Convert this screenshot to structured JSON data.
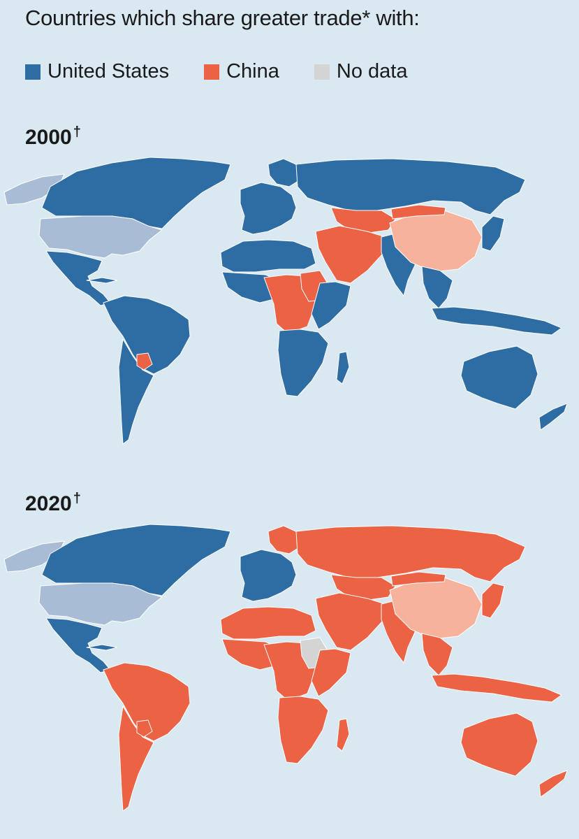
{
  "title": "Countries which share greater trade* with:",
  "legend": [
    {
      "label": "United States",
      "color": "#2e6ca4"
    },
    {
      "label": "China",
      "color": "#ec6245"
    },
    {
      "label": "No data",
      "color": "#d4d4d4"
    }
  ],
  "colors": {
    "background": "#d9e8f1",
    "us_self": "#a9bcd6",
    "china_self": "#f7b29c",
    "greenland": "#a9bcd6",
    "border": "#ffffff"
  },
  "maps": [
    {
      "year_label": "2000",
      "dagger": "†",
      "regions": {
        "canada": "us",
        "greenland": "na",
        "usa": "us_self",
        "mexico_ca": "us",
        "south_america_north": "us",
        "south_america_south": "us",
        "paraguay": "china",
        "europe": "us",
        "scandinavia": "us",
        "russia": "us",
        "central_asia": "china",
        "middle_east": "china",
        "north_africa": "us",
        "west_africa": "us",
        "central_africa": "china",
        "sudan_region": "china",
        "east_africa": "us",
        "southern_africa": "us",
        "madagascar": "us",
        "south_asia": "us",
        "china": "china_self",
        "mongolia": "china",
        "japan_korea": "us",
        "southeast_asia": "us",
        "indonesia": "us",
        "australia": "us",
        "new_zealand": "us"
      }
    },
    {
      "year_label": "2020",
      "dagger": "†",
      "regions": {
        "canada": "us",
        "greenland": "na",
        "usa": "us_self",
        "mexico_ca": "us",
        "south_america_north": "china",
        "south_america_south": "china",
        "paraguay": "china",
        "europe": "us",
        "scandinavia": "china",
        "russia": "china",
        "central_asia": "china",
        "middle_east": "china",
        "north_africa": "china",
        "west_africa": "china",
        "central_africa": "china",
        "sudan_region": "nodata",
        "east_africa": "china",
        "southern_africa": "china",
        "madagascar": "china",
        "south_asia": "china",
        "china": "china_self",
        "mongolia": "china",
        "japan_korea": "china",
        "southeast_asia": "china",
        "indonesia": "china",
        "australia": "china",
        "new_zealand": "china"
      }
    }
  ]
}
